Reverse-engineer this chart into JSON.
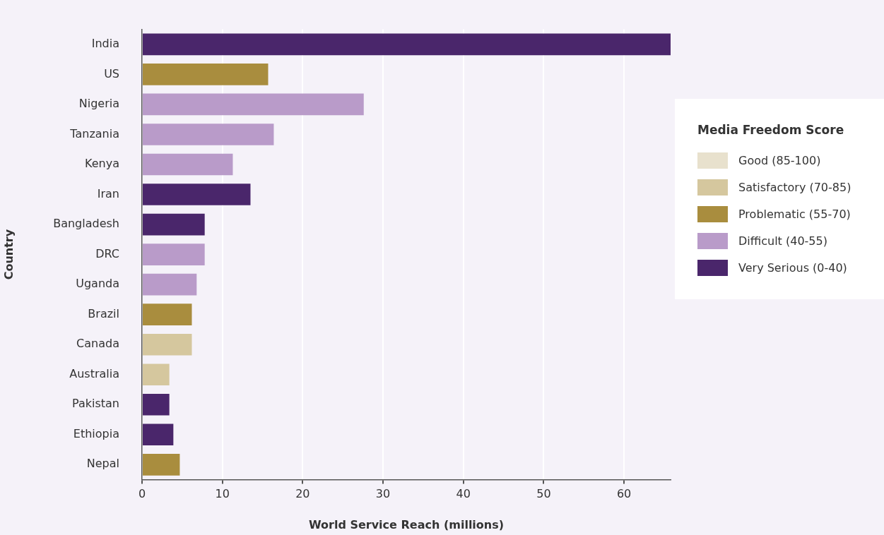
{
  "chart_data": {
    "type": "bar",
    "orientation": "horizontal",
    "stacked": true,
    "xlabel": "World Service Reach (millions)",
    "ylabel": "Country",
    "legend_title": "Media Freedom Score",
    "categories": [
      "India",
      "US",
      "Nigeria",
      "Tanzania",
      "Kenya",
      "Iran",
      "Bangladesh",
      "DRC",
      "Uganda",
      "Brazil",
      "Canada",
      "Australia",
      "Pakistan",
      "Ethiopia",
      "Nepal"
    ],
    "series": [
      {
        "name": "Good (85-100)",
        "color": "#e8e1cd",
        "values": [
          null,
          null,
          null,
          null,
          null,
          null,
          null,
          null,
          null,
          null,
          null,
          null,
          null,
          null,
          null
        ]
      },
      {
        "name": "Satisfactory (70-85)",
        "color": "#d5c79e",
        "values": [
          null,
          null,
          null,
          null,
          null,
          null,
          null,
          null,
          null,
          null,
          6.2,
          3.4,
          null,
          null,
          null
        ]
      },
      {
        "name": "Problematic (55-70)",
        "color": "#a98d3e",
        "values": [
          null,
          15.7,
          null,
          null,
          null,
          null,
          null,
          null,
          null,
          6.2,
          null,
          null,
          null,
          null,
          4.7
        ]
      },
      {
        "name": "Difficult (40-55)",
        "color": "#b99bc9",
        "values": [
          null,
          null,
          27.6,
          16.4,
          11.3,
          null,
          null,
          7.8,
          6.8,
          null,
          null,
          null,
          null,
          null,
          null
        ]
      },
      {
        "name": "Very Serious (0-40)",
        "color": "#4a266b",
        "values": [
          65.8,
          null,
          null,
          null,
          null,
          13.5,
          7.8,
          null,
          null,
          null,
          null,
          null,
          3.4,
          3.9,
          null
        ]
      }
    ],
    "xlim": [
      0,
      65.8
    ],
    "xticks": [
      0,
      10,
      20,
      30,
      40,
      50,
      60
    ],
    "grid": "x",
    "legend": "right"
  }
}
